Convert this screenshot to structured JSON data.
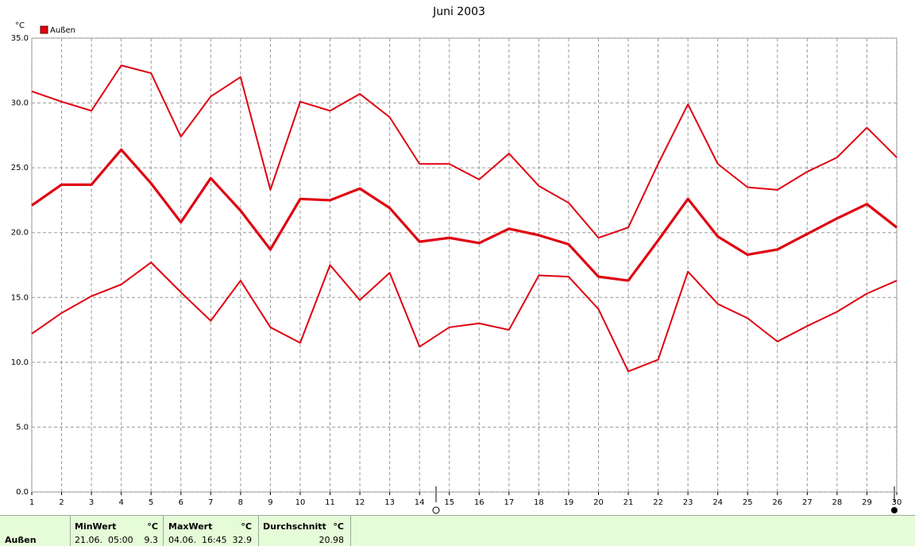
{
  "chart_data": {
    "type": "line",
    "title": "Juni 2003",
    "y_label": "°C",
    "x": [
      1,
      2,
      3,
      4,
      5,
      6,
      7,
      8,
      9,
      10,
      11,
      12,
      13,
      14,
      15,
      16,
      17,
      18,
      19,
      20,
      21,
      22,
      23,
      24,
      25,
      26,
      27,
      28,
      29,
      30
    ],
    "xlim": [
      1,
      30
    ],
    "series": [
      {
        "name": "Außen",
        "color": "#e00010",
        "values": [
          22.1,
          23.7,
          23.7,
          26.4,
          23.8,
          20.8,
          24.2,
          21.7,
          18.7,
          22.6,
          22.5,
          23.4,
          21.9,
          19.3,
          19.6,
          19.2,
          20.3,
          19.8,
          19.1,
          16.6,
          16.3,
          19.4,
          22.6,
          19.7,
          18.3,
          18.7,
          19.9,
          21.1,
          22.2,
          20.4
        ],
        "high": [
          30.9,
          30.1,
          29.4,
          32.9,
          32.3,
          27.4,
          30.5,
          32.0,
          23.3,
          30.1,
          29.4,
          30.7,
          28.9,
          25.3,
          25.3,
          24.1,
          26.1,
          23.6,
          22.3,
          19.6,
          20.4,
          25.3,
          29.9,
          25.3,
          23.5,
          23.3,
          24.7,
          25.8,
          28.1,
          25.8
        ],
        "low": [
          12.2,
          13.8,
          15.1,
          16.0,
          17.7,
          15.4,
          13.2,
          16.3,
          12.7,
          11.5,
          17.5,
          14.8,
          16.9,
          11.2,
          12.7,
          13.0,
          12.5,
          16.7,
          16.6,
          14.1,
          9.3,
          10.2,
          17.0,
          14.5,
          13.4,
          11.6,
          12.8,
          13.9,
          15.3,
          16.3
        ]
      }
    ],
    "ylim": [
      0,
      35
    ],
    "yticks": [
      {
        "value": 0,
        "label": "0.0"
      },
      {
        "value": 5,
        "label": "5.0"
      },
      {
        "value": 10,
        "label": "10.0"
      },
      {
        "value": 15,
        "label": "15.0"
      },
      {
        "value": 20,
        "label": "20.0"
      },
      {
        "value": 25,
        "label": "25.0"
      },
      {
        "value": 30,
        "label": "30.0"
      },
      {
        "value": 35,
        "label": "35.0"
      }
    ],
    "grid": true
  },
  "summary": {
    "row_label": "Außen",
    "min": {
      "header": "MinWert",
      "unit": "°C",
      "time": "21.06.  05:00",
      "value": 9.3
    },
    "max": {
      "header": "MaxWert",
      "unit": "°C",
      "time": "04.06.  16:45",
      "value": 32.9
    },
    "avg": {
      "header": "Durchschnitt",
      "unit": "°C",
      "value": 20.98
    }
  }
}
